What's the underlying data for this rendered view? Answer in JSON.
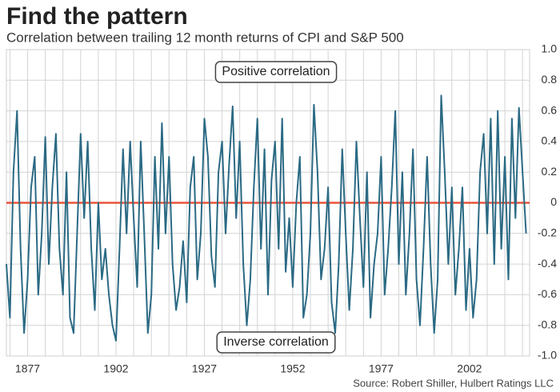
{
  "chart_data": {
    "type": "line",
    "title": "Find the pattern",
    "subtitle": "Correlation between trailing 12 month returns of CPI and S&P 500",
    "source": "Source: Robert Shiller, Hulbert Ratings LLC",
    "annotations": [
      "Positive correlation",
      "Inverse correlation"
    ],
    "xlim": [
      1871,
      2019
    ],
    "xticks": [
      1877,
      1902,
      1927,
      1952,
      1977,
      2002
    ],
    "x_grid": [
      1872,
      1877,
      1882,
      1887,
      1892,
      1897,
      1902,
      1907,
      1912,
      1917,
      1922,
      1927,
      1932,
      1937,
      1942,
      1947,
      1952,
      1957,
      1962,
      1967,
      1972,
      1977,
      1982,
      1987,
      1992,
      1997,
      2002,
      2007,
      2012,
      2017
    ],
    "ylim": [
      -1,
      1
    ],
    "yticks": [
      {
        "value": 1,
        "label": "1.0"
      },
      0.8,
      0.6,
      0.4,
      0.2,
      0,
      -0.2,
      -0.4,
      -0.6,
      -0.8,
      {
        "value": -1,
        "label": "-1.0"
      }
    ],
    "grid": true,
    "reference_line": {
      "value": 0,
      "color": "#e8543a"
    },
    "x": [
      1871,
      1872,
      1873,
      1874,
      1875,
      1876,
      1877,
      1878,
      1879,
      1880,
      1881,
      1882,
      1883,
      1884,
      1885,
      1886,
      1887,
      1888,
      1889,
      1890,
      1891,
      1892,
      1893,
      1894,
      1895,
      1896,
      1897,
      1898,
      1899,
      1900,
      1901,
      1902,
      1903,
      1904,
      1905,
      1906,
      1907,
      1908,
      1909,
      1910,
      1911,
      1912,
      1913,
      1914,
      1915,
      1916,
      1917,
      1918,
      1919,
      1920,
      1921,
      1922,
      1923,
      1924,
      1925,
      1926,
      1927,
      1928,
      1929,
      1930,
      1931,
      1932,
      1933,
      1934,
      1935,
      1936,
      1937,
      1938,
      1939,
      1940,
      1941,
      1942,
      1943,
      1944,
      1945,
      1946,
      1947,
      1948,
      1949,
      1950,
      1951,
      1952,
      1953,
      1954,
      1955,
      1956,
      1957,
      1958,
      1959,
      1960,
      1961,
      1962,
      1963,
      1964,
      1965,
      1966,
      1967,
      1968,
      1969,
      1970,
      1971,
      1972,
      1973,
      1974,
      1975,
      1976,
      1977,
      1978,
      1979,
      1980,
      1981,
      1982,
      1983,
      1984,
      1985,
      1986,
      1987,
      1988,
      1989,
      1990,
      1991,
      1992,
      1993,
      1994,
      1995,
      1996,
      1997,
      1998,
      1999,
      2000,
      2001,
      2002,
      2003,
      2004,
      2005,
      2006,
      2007,
      2008,
      2009,
      2010,
      2011,
      2012,
      2013,
      2014,
      2015,
      2016,
      2017,
      2018
    ],
    "series": [
      {
        "color": "#2b6a84",
        "values": [
          -0.4,
          -0.75,
          0.2,
          0.6,
          -0.3,
          -0.85,
          -0.5,
          0.1,
          0.3,
          -0.6,
          -0.2,
          0.43,
          -0.4,
          0.1,
          0.45,
          -0.3,
          -0.6,
          0.2,
          -0.75,
          -0.85,
          -0.2,
          0.45,
          -0.1,
          0.4,
          -0.3,
          -0.7,
          0.0,
          -0.5,
          -0.3,
          -0.6,
          -0.8,
          -0.9,
          -0.3,
          0.35,
          -0.2,
          0.4,
          -0.1,
          -0.55,
          0.4,
          -0.2,
          -0.85,
          -0.6,
          0.3,
          -0.3,
          0.52,
          -0.2,
          0.3,
          -0.4,
          -0.7,
          -0.55,
          -0.25,
          -0.65,
          0.1,
          0.3,
          -0.5,
          -0.2,
          0.55,
          0.3,
          -0.35,
          -0.55,
          0.2,
          0.4,
          -0.2,
          0.25,
          0.63,
          -0.1,
          0.4,
          -0.4,
          -0.8,
          -0.5,
          0.1,
          0.55,
          -0.3,
          0.35,
          -0.6,
          0.15,
          0.4,
          -0.3,
          0.55,
          -0.45,
          -0.1,
          -0.55,
          0.0,
          0.3,
          -0.75,
          -0.6,
          -0.2,
          0.64,
          0.2,
          -0.5,
          -0.3,
          0.1,
          -0.65,
          -0.85,
          -0.4,
          0.35,
          -0.2,
          -0.7,
          -0.3,
          0.4,
          -0.1,
          -0.55,
          0.2,
          -0.75,
          -0.4,
          -0.2,
          0.3,
          -0.6,
          -0.3,
          0.1,
          0.6,
          -0.4,
          0.2,
          -0.6,
          -0.2,
          0.35,
          -0.5,
          -0.8,
          -0.3,
          0.3,
          -0.4,
          -0.85,
          -0.5,
          0.7,
          0.2,
          -0.4,
          0.1,
          -0.6,
          -0.3,
          0.1,
          -0.7,
          -0.3,
          -0.75,
          -0.5,
          0.2,
          0.45,
          -0.2,
          0.55,
          -0.4,
          0.6,
          -0.3,
          0.3,
          -0.5,
          0.55,
          -0.1,
          0.62,
          0.2,
          -0.2
        ]
      }
    ]
  }
}
